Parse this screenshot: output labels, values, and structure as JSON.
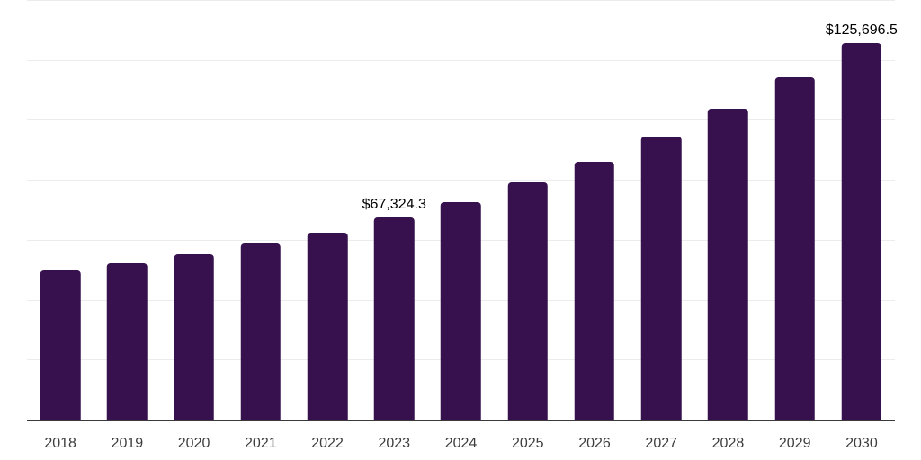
{
  "chart_data": {
    "type": "bar",
    "title": "",
    "xlabel": "",
    "ylabel": "",
    "categories": [
      "2018",
      "2019",
      "2020",
      "2021",
      "2022",
      "2023",
      "2024",
      "2025",
      "2026",
      "2027",
      "2028",
      "2029",
      "2030"
    ],
    "values": [
      49800,
      52300,
      55200,
      58700,
      62500,
      67324.3,
      72700,
      79000,
      86100,
      94400,
      103700,
      114200,
      125696.5
    ],
    "value_labels": {
      "2023": "$67,324.3",
      "2030": "$125,696.5"
    },
    "ylim": [
      0,
      140000
    ],
    "gridline_step": 20000,
    "grid": "horizontal",
    "legend_position": "none",
    "colors": {
      "bar": "#36114e",
      "gridline": "#ececec",
      "axis_line": "#3a3a3a",
      "tick_label": "#3d3d3d",
      "value_label": "#000000",
      "background": "#ffffff"
    }
  }
}
